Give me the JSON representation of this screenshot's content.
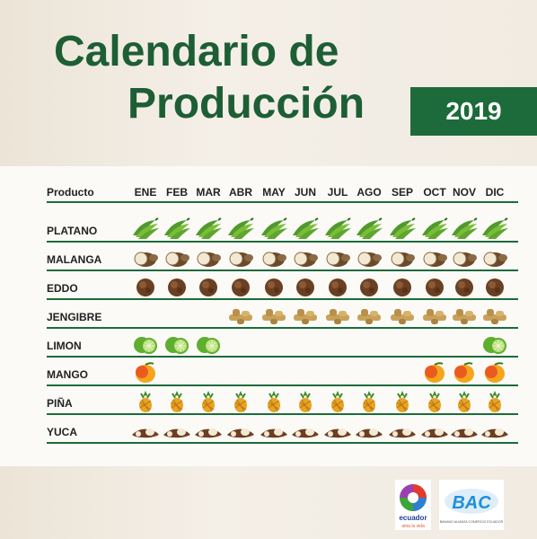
{
  "title": {
    "line1": "Calendario de",
    "line2": "Producción"
  },
  "year": "2019",
  "table": {
    "product_header": "Producto",
    "months": [
      "ENE",
      "FEB",
      "MAR",
      "ABR",
      "MAY",
      "JUN",
      "JUL",
      "AGO",
      "SEP",
      "OCT",
      "NOV",
      "DIC"
    ],
    "rows": [
      {
        "name": "PLATANO",
        "icon": "plantain-icon",
        "months": [
          1,
          1,
          1,
          1,
          1,
          1,
          1,
          1,
          1,
          1,
          1,
          1
        ]
      },
      {
        "name": "MALANGA",
        "icon": "malanga-icon",
        "months": [
          1,
          1,
          1,
          1,
          1,
          1,
          1,
          1,
          1,
          1,
          1,
          1
        ]
      },
      {
        "name": "EDDO",
        "icon": "eddo-icon",
        "months": [
          1,
          1,
          1,
          1,
          1,
          1,
          1,
          1,
          1,
          1,
          1,
          1
        ]
      },
      {
        "name": "JENGIBRE",
        "icon": "ginger-icon",
        "months": [
          0,
          0,
          0,
          1,
          1,
          1,
          1,
          1,
          1,
          1,
          1,
          1
        ]
      },
      {
        "name": "LIMON",
        "icon": "lime-icon",
        "months": [
          1,
          1,
          1,
          0,
          0,
          0,
          0,
          0,
          0,
          0,
          0,
          1
        ]
      },
      {
        "name": "MANGO",
        "icon": "mango-icon",
        "months": [
          1,
          0,
          0,
          0,
          0,
          0,
          0,
          0,
          0,
          1,
          1,
          1
        ]
      },
      {
        "name": "PIÑA",
        "icon": "pineapple-icon",
        "months": [
          1,
          1,
          1,
          1,
          1,
          1,
          1,
          1,
          1,
          1,
          1,
          1
        ]
      },
      {
        "name": "YUCA",
        "icon": "cassava-icon",
        "months": [
          1,
          1,
          1,
          1,
          1,
          1,
          1,
          1,
          1,
          1,
          1,
          1
        ]
      }
    ]
  },
  "logos": [
    {
      "name": "ecuador-logo",
      "text": "ecuador",
      "subtext": "ama la vida"
    },
    {
      "name": "bac-logo",
      "text": "BAC",
      "subtext": "BANANO ALIANZA COMERCIO ECUADOR"
    }
  ],
  "colors": {
    "green": "#1d6b3a",
    "title_green": "#1d5e35"
  }
}
